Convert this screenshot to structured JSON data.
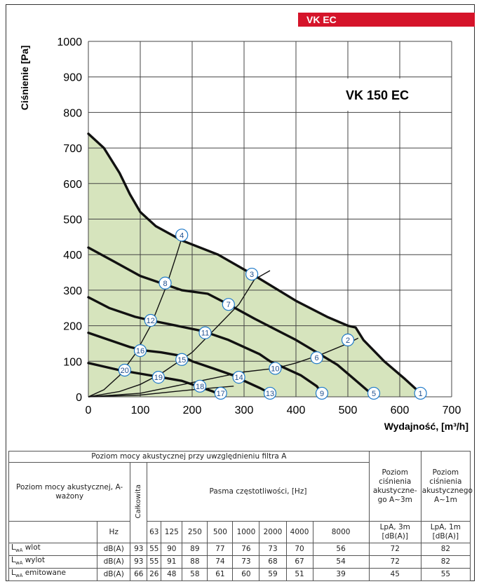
{
  "brand_tag": "VK EC",
  "chart_data": {
    "type": "line",
    "title": "VK 150 EC",
    "xlabel": "Wydajność, [m³/h]",
    "ylabel": "Ciśnienie [Pa]",
    "xlim": [
      0,
      700
    ],
    "ylim": [
      0,
      1000
    ],
    "xticks": [
      "0",
      "100",
      "200",
      "300",
      "400",
      "500",
      "600",
      "700"
    ],
    "yticks": [
      "0",
      "100",
      "200",
      "300",
      "400",
      "500",
      "600",
      "700",
      "800",
      "900",
      "1000"
    ],
    "grid": true,
    "area_color": "#d6e4bd",
    "fan_curves": [
      [
        [
          0,
          740
        ],
        [
          30,
          700
        ],
        [
          60,
          630
        ],
        [
          80,
          570
        ],
        [
          100,
          520
        ],
        [
          130,
          480
        ],
        [
          180,
          440
        ],
        [
          250,
          400
        ],
        [
          310,
          350
        ],
        [
          400,
          270
        ],
        [
          460,
          225
        ],
        [
          500,
          200
        ],
        [
          515,
          195
        ],
        [
          530,
          160
        ],
        [
          570,
          100
        ],
        [
          610,
          50
        ],
        [
          640,
          10
        ],
        [
          643,
          0
        ]
      ],
      [
        [
          0,
          420
        ],
        [
          50,
          380
        ],
        [
          100,
          340
        ],
        [
          140,
          320
        ],
        [
          180,
          300
        ],
        [
          230,
          290
        ],
        [
          270,
          260
        ],
        [
          320,
          220
        ],
        [
          360,
          190
        ],
        [
          400,
          160
        ],
        [
          440,
          125
        ],
        [
          480,
          90
        ],
        [
          520,
          40
        ],
        [
          548,
          5
        ],
        [
          550,
          0
        ]
      ],
      [
        [
          0,
          280
        ],
        [
          40,
          250
        ],
        [
          90,
          225
        ],
        [
          120,
          215
        ],
        [
          170,
          200
        ],
        [
          220,
          185
        ],
        [
          270,
          160
        ],
        [
          330,
          120
        ],
        [
          350,
          100
        ],
        [
          380,
          80
        ],
        [
          410,
          60
        ],
        [
          440,
          30
        ],
        [
          450,
          10
        ],
        [
          452,
          0
        ]
      ],
      [
        [
          0,
          180
        ],
        [
          40,
          160
        ],
        [
          80,
          140
        ],
        [
          110,
          130
        ],
        [
          140,
          125
        ],
        [
          180,
          115
        ],
        [
          200,
          100
        ],
        [
          240,
          80
        ],
        [
          280,
          60
        ],
        [
          300,
          45
        ],
        [
          330,
          25
        ],
        [
          350,
          10
        ],
        [
          355,
          0
        ]
      ],
      [
        [
          0,
          95
        ],
        [
          30,
          85
        ],
        [
          60,
          75
        ],
        [
          100,
          65
        ],
        [
          140,
          55
        ],
        [
          180,
          45
        ],
        [
          210,
          30
        ],
        [
          240,
          15
        ],
        [
          258,
          2
        ],
        [
          260,
          0
        ]
      ]
    ],
    "system_curves": [
      [
        [
          0,
          0
        ],
        [
          30,
          20
        ],
        [
          60,
          60
        ],
        [
          90,
          120
        ],
        [
          120,
          200
        ],
        [
          150,
          310
        ],
        [
          170,
          400
        ],
        [
          185,
          470
        ]
      ],
      [
        [
          0,
          0
        ],
        [
          60,
          15
        ],
        [
          100,
          35
        ],
        [
          140,
          65
        ],
        [
          200,
          125
        ],
        [
          250,
          200
        ],
        [
          290,
          260
        ],
        [
          320,
          330
        ],
        [
          350,
          355
        ]
      ],
      [
        [
          0,
          0
        ],
        [
          100,
          10
        ],
        [
          200,
          40
        ],
        [
          300,
          70
        ],
        [
          360,
          80
        ],
        [
          400,
          95
        ],
        [
          450,
          120
        ],
        [
          500,
          150
        ],
        [
          520,
          165
        ]
      ],
      [
        [
          0,
          0
        ],
        [
          100,
          5
        ],
        [
          200,
          20
        ],
        [
          240,
          25
        ],
        [
          280,
          30
        ]
      ]
    ],
    "points": [
      {
        "label": "1",
        "x": 640,
        "y": 10
      },
      {
        "label": "2",
        "x": 500,
        "y": 160
      },
      {
        "label": "3",
        "x": 315,
        "y": 345
      },
      {
        "label": "4",
        "x": 180,
        "y": 455
      },
      {
        "label": "5",
        "x": 550,
        "y": 10
      },
      {
        "label": "6",
        "x": 440,
        "y": 110
      },
      {
        "label": "7",
        "x": 270,
        "y": 260
      },
      {
        "label": "8",
        "x": 148,
        "y": 320
      },
      {
        "label": "9",
        "x": 450,
        "y": 10
      },
      {
        "label": "10",
        "x": 360,
        "y": 80
      },
      {
        "label": "11",
        "x": 225,
        "y": 180
      },
      {
        "label": "12",
        "x": 120,
        "y": 215
      },
      {
        "label": "13",
        "x": 350,
        "y": 10
      },
      {
        "label": "14",
        "x": 290,
        "y": 55
      },
      {
        "label": "15",
        "x": 180,
        "y": 105
      },
      {
        "label": "16",
        "x": 100,
        "y": 130
      },
      {
        "label": "17",
        "x": 255,
        "y": 10
      },
      {
        "label": "18",
        "x": 215,
        "y": 30
      },
      {
        "label": "19",
        "x": 135,
        "y": 55
      },
      {
        "label": "20",
        "x": 70,
        "y": 75
      }
    ]
  },
  "table": {
    "title": "Poziom mocy akustycznej przy uwzględnieniu filtra A",
    "level_label": "Poziom mocy akustycznej, A-ważony",
    "total_label": "Całkowita",
    "bands_label": "Pasma częstotliwości, [Hz]",
    "lpa3_header": "Poziom ciśnienia akustyczne-go A~3m",
    "lpa1_header": "Poziom ciśnienia akustycznego A~1m",
    "hz_label": "Hz",
    "bands": [
      "63",
      "125",
      "250",
      "500",
      "1000",
      "2000",
      "4000",
      "8000"
    ],
    "lpa3_unit": "LpA, 3m [dB(A)]",
    "lpa1_unit": "LpA, 1m [dB(A)]",
    "rows": [
      {
        "main": "L",
        "sub": "wA",
        "name": " wlot",
        "unit": "dB(A)",
        "total": "93",
        "bands": [
          "55",
          "90",
          "89",
          "77",
          "76",
          "73",
          "70",
          "56"
        ],
        "lpa3": "72",
        "lpa1": "82"
      },
      {
        "main": "L",
        "sub": "wA",
        "name": " wylot",
        "unit": "dB(A)",
        "total": "93",
        "bands": [
          "55",
          "91",
          "88",
          "74",
          "73",
          "68",
          "67",
          "54"
        ],
        "lpa3": "72",
        "lpa1": "82"
      },
      {
        "main": "L",
        "sub": "wA",
        "name": " emitowane",
        "unit": "dB(A)",
        "total": "66",
        "bands": [
          "26",
          "48",
          "58",
          "61",
          "60",
          "59",
          "51",
          "39"
        ],
        "lpa3": "45",
        "lpa1": "55"
      }
    ]
  }
}
